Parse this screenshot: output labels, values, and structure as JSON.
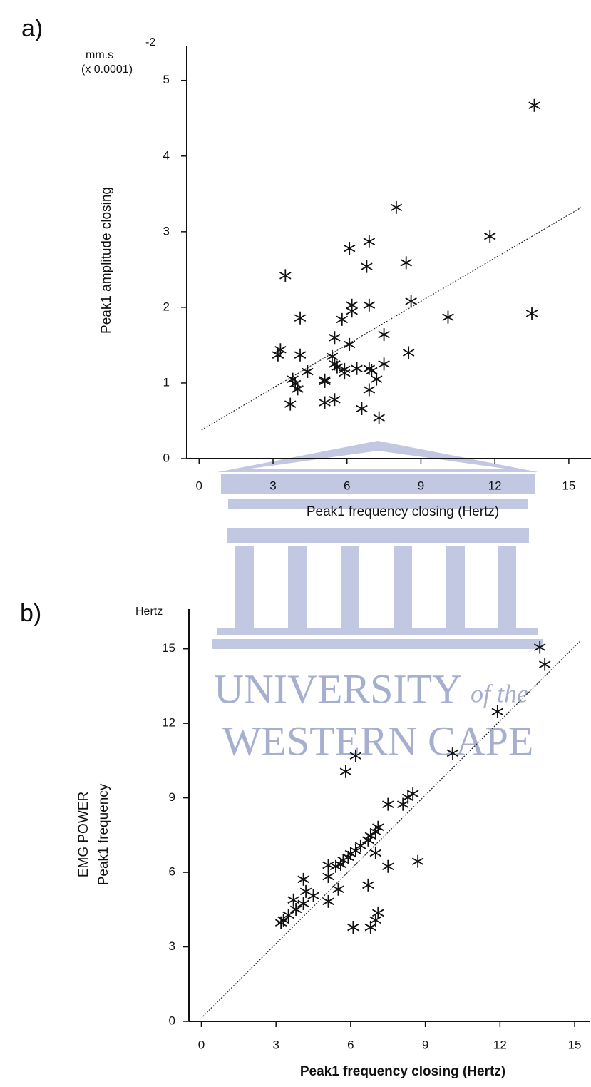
{
  "chart_data": [
    {
      "type": "scatter",
      "panel_label": "a)",
      "y_unit_label": "mm.s",
      "y_unit_exponent": "-2",
      "y_scale_label": "(x 0.0001)",
      "ylabel": [
        "Peak1 amplitude closing"
      ],
      "xlabel": "Peak1 frequency closing (Hertz)",
      "color": "#111111",
      "marker": "asterisk",
      "xlim": [
        -0.5,
        15.9
      ],
      "ylim": [
        0,
        5.45
      ],
      "xticks": [
        0,
        3,
        6,
        9,
        12,
        15
      ],
      "yticks": [
        0,
        1,
        2,
        3,
        4,
        5
      ],
      "grid": false,
      "x": [
        13.6,
        8.0,
        11.8,
        6.9,
        6.1,
        6.8,
        8.4,
        3.5,
        8.6,
        6.2,
        6.9,
        6.2,
        10.1,
        13.5,
        4.1,
        5.8,
        7.5,
        5.5,
        6.1,
        3.3,
        3.2,
        8.5,
        4.1,
        5.4,
        7.5,
        5.5,
        5.6,
        5.9,
        6.4,
        6.9,
        4.4,
        5.9,
        7.0,
        3.8,
        5.1,
        5.1,
        7.2,
        3.9,
        4.0,
        6.9,
        5.5,
        3.7,
        5.1,
        6.6,
        7.3
      ],
      "y": [
        4.67,
        3.32,
        2.94,
        2.87,
        2.78,
        2.54,
        2.59,
        2.42,
        2.08,
        2.03,
        2.03,
        1.95,
        1.87,
        1.92,
        1.86,
        1.84,
        1.64,
        1.6,
        1.51,
        1.44,
        1.37,
        1.4,
        1.37,
        1.35,
        1.25,
        1.25,
        1.21,
        1.18,
        1.19,
        1.19,
        1.15,
        1.13,
        1.16,
        1.05,
        1.04,
        1.02,
        1.05,
        0.99,
        0.92,
        0.91,
        0.78,
        0.72,
        0.74,
        0.66,
        0.54
      ],
      "trend_line": {
        "x": [
          0.1,
          15.5
        ],
        "y": [
          0.38,
          3.32
        ]
      }
    },
    {
      "type": "scatter",
      "panel_label": "b)",
      "y_unit_label": "Hertz",
      "ylabel": [
        "EMG POWER",
        "Peak1 frequency"
      ],
      "xlabel": "Peak1 frequency closing (Hertz)",
      "color": "#111111",
      "marker": "asterisk",
      "xlim": [
        -0.5,
        15.6
      ],
      "ylim": [
        0,
        16.6
      ],
      "xticks": [
        0,
        3,
        6,
        9,
        12,
        15
      ],
      "yticks": [
        0,
        3,
        6,
        9,
        12,
        15
      ],
      "grid": false,
      "x": [
        13.6,
        13.8,
        11.9,
        10.1,
        6.2,
        5.8,
        8.5,
        8.3,
        8.1,
        7.5,
        7.1,
        7.0,
        6.8,
        6.7,
        6.4,
        6.2,
        6.0,
        5.9,
        5.7,
        5.6,
        5.4,
        5.1,
        7.0,
        8.7,
        7.5,
        5.1,
        4.1,
        5.5,
        6.7,
        4.2,
        4.5,
        5.1,
        3.7,
        4.1,
        3.8,
        3.5,
        3.3,
        3.2,
        7.1,
        7.0,
        6.1,
        6.8
      ],
      "y": [
        15.06,
        14.37,
        12.47,
        10.8,
        10.69,
        10.06,
        9.17,
        9.02,
        8.74,
        8.74,
        7.82,
        7.64,
        7.47,
        7.3,
        7.07,
        6.87,
        6.75,
        6.61,
        6.49,
        6.32,
        6.24,
        6.29,
        6.78,
        6.44,
        6.24,
        5.83,
        5.72,
        5.32,
        5.49,
        5.23,
        5.06,
        4.83,
        4.89,
        4.74,
        4.51,
        4.28,
        4.08,
        3.97,
        4.37,
        4.08,
        3.79,
        3.79
      ],
      "trend_line": {
        "x": [
          0.06,
          15.2
        ],
        "y": [
          0.2,
          15.29
        ]
      }
    }
  ],
  "watermark": {
    "line1": "UNIVERSITY",
    "line1_suffix": "of the",
    "line2": "WESTERN CAPE"
  }
}
